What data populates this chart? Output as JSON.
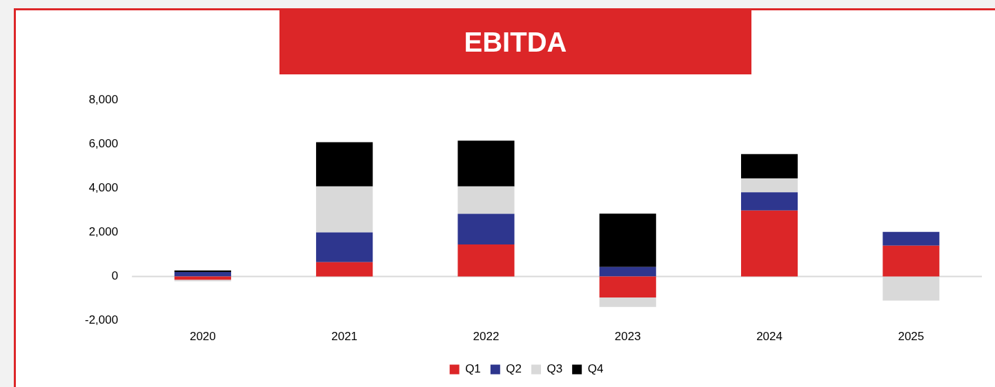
{
  "chart_data": {
    "type": "bar",
    "title": "EBITDA",
    "stacked": true,
    "categories": [
      "2020",
      "2021",
      "2022",
      "2023",
      "2024",
      "2025"
    ],
    "series": [
      {
        "name": "Q1",
        "color": "#dc2628",
        "values": [
          -150,
          650,
          1450,
          -950,
          2990,
          1400
        ]
      },
      {
        "name": "Q2",
        "color": "#2e368e",
        "values": [
          200,
          1350,
          1390,
          430,
          830,
          620
        ]
      },
      {
        "name": "Q3",
        "color": "#d9d9d9",
        "values": [
          -70,
          2080,
          1240,
          -430,
          620,
          -1090
        ]
      },
      {
        "name": "Q4",
        "color": "#000000",
        "values": [
          70,
          2010,
          2080,
          2420,
          1110,
          null
        ]
      }
    ],
    "ylim": [
      -2000,
      8000
    ],
    "yticks": [
      {
        "value": -2000,
        "label": "-2,000"
      },
      0,
      {
        "value": 2000,
        "label": "2,000"
      },
      {
        "value": 4000,
        "label": "4,000"
      },
      {
        "value": 6000,
        "label": "6,000"
      },
      {
        "value": 8000,
        "label": "8,000"
      }
    ],
    "ref_lines": [
      {
        "axis": "y",
        "value": 0,
        "color": "#d9d9d9"
      }
    ],
    "legend": "bottom"
  }
}
